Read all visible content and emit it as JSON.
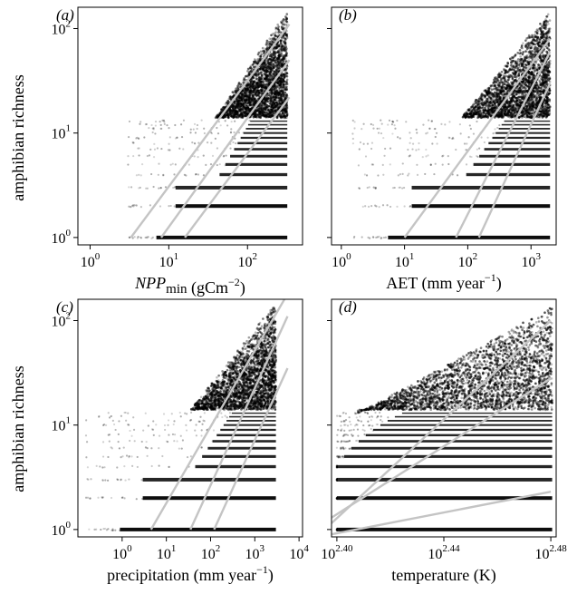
{
  "figure": {
    "y_axis_label": "amphibian richness"
  },
  "chart_data": [
    {
      "type": "scatter",
      "panel_label": "(a)",
      "xlabel_prefix": "NPP",
      "xlabel_sub": "min",
      "xlabel_suffix": " (gCm",
      "xlabel_sup": "−2",
      "xlabel_close": ")",
      "x_scale": "log",
      "y_scale": "log",
      "xlim": [
        0.7,
        500
      ],
      "ylim": [
        0.85,
        160
      ],
      "x_ticks": [
        1,
        10,
        100
      ],
      "x_tick_base": [
        "10",
        "10",
        "10"
      ],
      "x_tick_exp": [
        "0",
        "1",
        "2"
      ],
      "y_ticks": [
        1,
        10,
        100
      ],
      "y_tick_base": [
        "10",
        "10",
        "10"
      ],
      "y_tick_exp": [
        "0",
        "1",
        "2"
      ],
      "point_cloud": {
        "x_min": 3,
        "x_max": 320,
        "y_max": 150
      },
      "fit_lines": [
        {
          "x": [
            3.3,
            340
          ],
          "y": [
            1,
            110
          ]
        },
        {
          "x": [
            8,
            340
          ],
          "y": [
            1,
            50
          ]
        },
        {
          "x": [
            16,
            340
          ],
          "y": [
            1,
            22
          ]
        }
      ]
    },
    {
      "type": "scatter",
      "panel_label": "(b)",
      "xlabel_prefix": "",
      "xlabel_sub": "",
      "xlabel_suffix": "AET (mm year",
      "xlabel_sup": "−1",
      "xlabel_close": ")",
      "x_scale": "log",
      "y_scale": "log",
      "xlim": [
        0.7,
        2500
      ],
      "ylim": [
        0.85,
        160
      ],
      "x_ticks": [
        1,
        10,
        100,
        1000
      ],
      "x_tick_base": [
        "10",
        "10",
        "10",
        "10"
      ],
      "x_tick_exp": [
        "0",
        "1",
        "2",
        "3"
      ],
      "y_ticks": [
        1,
        10,
        100
      ],
      "y_tick_base": [
        "10",
        "10",
        "10"
      ],
      "y_tick_exp": [
        "0",
        "1",
        "2"
      ],
      "point_cloud": {
        "x_min": 1.5,
        "x_max": 2000,
        "y_max": 150
      },
      "fit_lines": [
        {
          "x": [
            10,
            2000
          ],
          "y": [
            1,
            80
          ]
        },
        {
          "x": [
            65,
            2000
          ],
          "y": [
            1,
            60
          ]
        },
        {
          "x": [
            150,
            2000
          ],
          "y": [
            1,
            30
          ]
        }
      ]
    },
    {
      "type": "scatter",
      "panel_label": "(c)",
      "xlabel_prefix": "",
      "xlabel_sub": "",
      "xlabel_suffix": "precipitation (mm year",
      "xlabel_sup": "−1",
      "xlabel_close": ")",
      "x_scale": "log",
      "y_scale": "log",
      "xlim": [
        0.1,
        12000
      ],
      "ylim": [
        0.85,
        160
      ],
      "x_ticks": [
        1,
        10,
        100,
        1000,
        10000
      ],
      "x_tick_base": [
        "10",
        "10",
        "10",
        "10",
        "10"
      ],
      "x_tick_exp": [
        "0",
        "1",
        "2",
        "3",
        "4"
      ],
      "y_ticks": [
        1,
        10,
        100
      ],
      "y_tick_base": [
        "10",
        "10",
        "10"
      ],
      "y_tick_exp": [
        "0",
        "1",
        "2"
      ],
      "point_cloud": {
        "x_min": 0.15,
        "x_max": 3000,
        "y_max": 150
      },
      "fit_lines": [
        {
          "x": [
            4.5,
            5500
          ],
          "y": [
            1,
            180
          ]
        },
        {
          "x": [
            35,
            5500
          ],
          "y": [
            1,
            110
          ]
        },
        {
          "x": [
            120,
            5500
          ],
          "y": [
            1,
            35
          ]
        }
      ]
    },
    {
      "type": "scatter",
      "panel_label": "(d)",
      "xlabel_prefix": "",
      "xlabel_sub": "",
      "xlabel_suffix": "temperature (K)",
      "xlabel_sup": "",
      "xlabel_close": "",
      "x_scale": "log",
      "y_scale": "log",
      "xlim": [
        2.398,
        2.482
      ],
      "x_values_are_log10": true,
      "ylim": [
        0.85,
        160
      ],
      "x_ticks": [
        2.4,
        2.44,
        2.48
      ],
      "x_tick_base": [
        "10",
        "10",
        "10"
      ],
      "x_tick_exp": [
        "2.40",
        "2.44",
        "2.48"
      ],
      "y_ticks": [
        1,
        10,
        100
      ],
      "y_tick_base": [
        "10",
        "10",
        "10"
      ],
      "y_tick_exp": [
        "0",
        "1",
        "2"
      ],
      "point_cloud": {
        "x_min": 2.4,
        "x_max": 2.4805,
        "y_max": 120
      },
      "fit_lines": [
        {
          "x": [
            2.398,
            2.48
          ],
          "y": [
            1.15,
            100
          ]
        },
        {
          "x": [
            2.398,
            2.48
          ],
          "y": [
            1.3,
            28
          ]
        },
        {
          "x": [
            2.398,
            2.48
          ],
          "y": [
            0.9,
            2.3
          ]
        }
      ]
    }
  ]
}
